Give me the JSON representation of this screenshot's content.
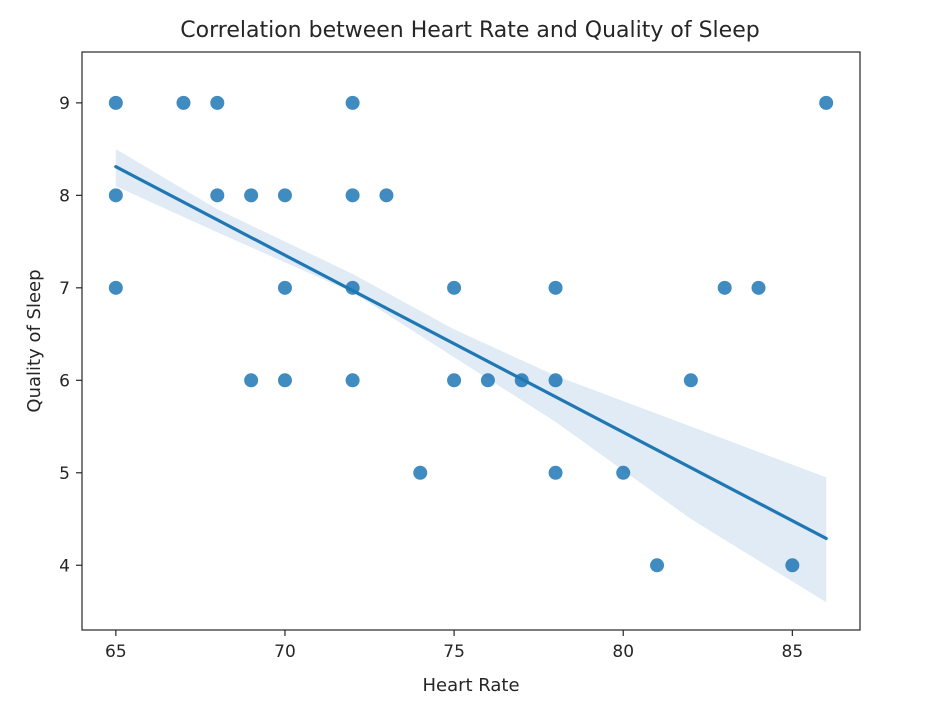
{
  "chart_data": {
    "type": "scatter",
    "title": "Correlation between Heart Rate and Quality of Sleep",
    "xlabel": "Heart Rate",
    "ylabel": "Quality of Sleep",
    "xlim": [
      64.0,
      87.0
    ],
    "ylim": [
      3.3,
      9.55
    ],
    "xticks": [
      65,
      70,
      75,
      80,
      85
    ],
    "yticks": [
      4,
      5,
      6,
      7,
      8,
      9
    ],
    "grid": false,
    "legend": "none",
    "point_color": "#1f77b4",
    "band_color": "#c6dbef",
    "points": [
      {
        "x": 65,
        "y": 9
      },
      {
        "x": 67,
        "y": 9
      },
      {
        "x": 68,
        "y": 9
      },
      {
        "x": 72,
        "y": 9
      },
      {
        "x": 86,
        "y": 9
      },
      {
        "x": 65,
        "y": 8
      },
      {
        "x": 68,
        "y": 8
      },
      {
        "x": 69,
        "y": 8
      },
      {
        "x": 70,
        "y": 8
      },
      {
        "x": 72,
        "y": 8
      },
      {
        "x": 73,
        "y": 8
      },
      {
        "x": 65,
        "y": 7
      },
      {
        "x": 70,
        "y": 7
      },
      {
        "x": 72,
        "y": 7
      },
      {
        "x": 75,
        "y": 7
      },
      {
        "x": 78,
        "y": 7
      },
      {
        "x": 83,
        "y": 7
      },
      {
        "x": 84,
        "y": 7
      },
      {
        "x": 69,
        "y": 6
      },
      {
        "x": 70,
        "y": 6
      },
      {
        "x": 72,
        "y": 6
      },
      {
        "x": 75,
        "y": 6
      },
      {
        "x": 76,
        "y": 6
      },
      {
        "x": 77,
        "y": 6
      },
      {
        "x": 78,
        "y": 6
      },
      {
        "x": 82,
        "y": 6
      },
      {
        "x": 74,
        "y": 5
      },
      {
        "x": 78,
        "y": 5
      },
      {
        "x": 80,
        "y": 5
      },
      {
        "x": 81,
        "y": 4
      },
      {
        "x": 85,
        "y": 4
      }
    ],
    "regression": {
      "x": [
        65,
        86
      ],
      "y": [
        8.31,
        4.29
      ]
    },
    "confidence_band": [
      {
        "x": 65,
        "lower": 8.1,
        "upper": 8.5
      },
      {
        "x": 68,
        "lower": 7.6,
        "upper": 7.85
      },
      {
        "x": 72,
        "lower": 6.95,
        "upper": 7.15
      },
      {
        "x": 75,
        "lower": 6.25,
        "upper": 6.55
      },
      {
        "x": 78,
        "lower": 5.55,
        "upper": 6.05
      },
      {
        "x": 82,
        "lower": 4.5,
        "upper": 5.5
      },
      {
        "x": 86,
        "lower": 3.6,
        "upper": 4.95
      }
    ]
  }
}
